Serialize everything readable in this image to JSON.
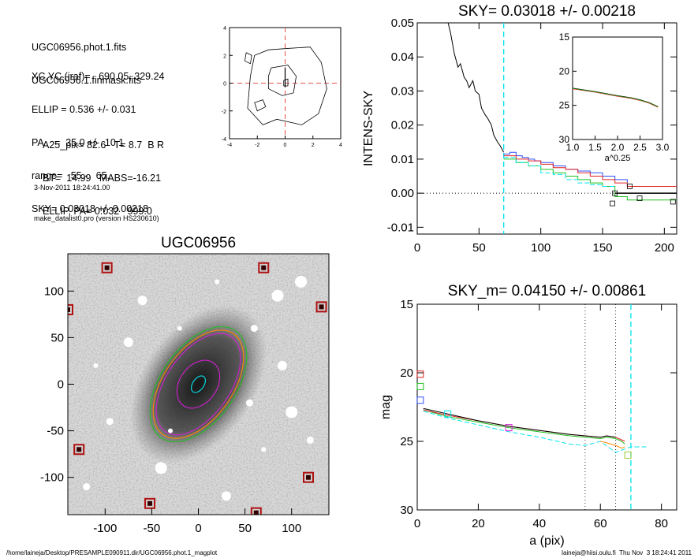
{
  "info_block": {
    "group1": [
      "UGC06956.phot.1.fits",
      "UGC06956.1.finmask.fits"
    ],
    "group2": [
      "XC,YC (iraf)=   690.05, 329.24",
      "ELLIP = 0.536 +/- 0.031",
      "PA    =  35.0 +/-  10.1",
      "range=   55.-   65.",
      "SKY= 0.03018 +/- 0.00218"
    ],
    "group3": [
      "A25_pix= 82.6   T= 8.7  B R",
      "BT=  14.99   MABS=-16.21",
      "ELLIP, PA= 0.032   999.0"
    ],
    "group4": [
      "3-Nov-2011 18:24:41.00",
      "make_datalist0.pro (version HS230610)"
    ]
  },
  "footer": {
    "left": "/home/laineja/Desktop/PRESAMPLE090911.dir/UGC06956.phot.1_magplot",
    "right": "laineja@hiisi.oulu.fi  Thu Nov  3 18:24:41 2011"
  },
  "colors": {
    "sky_line": "#00e5ee",
    "blue": "#3050ff",
    "red": "#e02020",
    "green": "#20c020",
    "magenta": "#d020d0",
    "orange": "#ff8800",
    "mask": "#b01010"
  },
  "chart_data": [
    {
      "id": "center_contour",
      "type": "contour",
      "title": "",
      "xlim": [
        -4,
        4
      ],
      "ylim": [
        -4,
        4
      ],
      "xticks": [
        "-4",
        "-2",
        "0",
        "2",
        "4"
      ],
      "yticks": [
        "4",
        "2",
        "0",
        "-2",
        "-4"
      ],
      "center": [
        0,
        0
      ]
    },
    {
      "id": "sky_profile",
      "type": "line",
      "title": "SKY= 0.03018 +/- 0.00218",
      "xlabel": "",
      "ylabel": "INTENS-SKY",
      "xlim": [
        0,
        210
      ],
      "ylim": [
        -0.012,
        0.05
      ],
      "xticks": [
        "0",
        "50",
        "100",
        "150",
        "200"
      ],
      "yticks": [
        "0.05",
        "0.04",
        "0.03",
        "0.02",
        "0.01",
        "0.00",
        "-0.01"
      ],
      "sky_radius": 70,
      "series": [
        {
          "color": "black",
          "x": [
            25,
            27,
            30,
            33,
            35,
            38,
            40,
            42,
            45,
            47,
            50,
            52,
            55,
            57,
            60,
            62,
            65,
            67,
            70
          ],
          "y": [
            0.05,
            0.047,
            0.041,
            0.037,
            0.038,
            0.034,
            0.033,
            0.031,
            0.033,
            0.03,
            0.029,
            0.025,
            0.023,
            0.022,
            0.02,
            0.017,
            0.015,
            0.014,
            0.012
          ]
        },
        {
          "color": "blue",
          "x": [
            70,
            75,
            80,
            85,
            90,
            95,
            100,
            110,
            120,
            130,
            140,
            150,
            160,
            170
          ],
          "y": [
            0.0115,
            0.012,
            0.011,
            0.0105,
            0.01,
            0.0095,
            0.009,
            0.008,
            0.007,
            0.0065,
            0.006,
            0.005,
            0.004,
            0.003
          ]
        },
        {
          "color": "red",
          "x": [
            70,
            80,
            90,
            100,
            110,
            120,
            130,
            140,
            150,
            160,
            170,
            210
          ],
          "y": [
            0.011,
            0.01,
            0.0095,
            0.0085,
            0.0075,
            0.007,
            0.006,
            0.005,
            0.004,
            0.003,
            0.002,
            0.002
          ]
        },
        {
          "color": "green",
          "x": [
            70,
            80,
            90,
            100,
            110,
            120,
            130,
            140,
            150,
            160,
            170,
            210
          ],
          "y": [
            0.01,
            0.009,
            0.008,
            0.007,
            0.006,
            0.005,
            0.004,
            0.003,
            0.002,
            -0.001,
            -0.002,
            -0.002
          ]
        },
        {
          "color": "cyan",
          "dashed": true,
          "x": [
            70,
            80,
            90,
            100,
            110,
            120,
            130,
            140,
            150,
            160
          ],
          "y": [
            0.0105,
            0.009,
            0.008,
            0.006,
            0.0055,
            0.004,
            0.003,
            0.0025,
            0.002,
            0.0015
          ]
        },
        {
          "color": "black",
          "x": [
            160,
            210
          ],
          "y": [
            0.0,
            0.0
          ]
        }
      ],
      "markers": [
        [
          172,
          0.002
        ],
        [
          160,
          0.0
        ],
        [
          158,
          -0.003
        ],
        [
          180,
          -0.0015
        ],
        [
          207,
          -0.0025
        ]
      ],
      "inset": {
        "xlabel": "a^0.25",
        "xlim": [
          1.0,
          3.0
        ],
        "ylim": [
          15,
          30
        ],
        "xticks": [
          "1.0",
          "1.5",
          "2.0",
          "2.5",
          "3.0"
        ],
        "yticks": [
          "15",
          "20",
          "25",
          "30"
        ],
        "x": [
          1.0,
          1.5,
          2.0,
          2.3,
          2.5,
          2.6,
          2.7,
          2.8,
          2.9
        ],
        "y": [
          22.5,
          23.0,
          23.6,
          23.9,
          24.2,
          24.4,
          24.6,
          24.9,
          25.2
        ]
      }
    },
    {
      "id": "galaxy_image",
      "type": "image",
      "title": "UGC06956",
      "xlim": [
        -140,
        140
      ],
      "ylim": [
        -140,
        140
      ],
      "xticks": [
        "-100",
        "-50",
        "0",
        "50",
        "100"
      ],
      "yticks": [
        "100",
        "50",
        "0",
        "-50",
        "-100"
      ],
      "mask_boxes": [
        [
          -98,
          125
        ],
        [
          70,
          125
        ],
        [
          -140,
          80
        ],
        [
          132,
          83
        ],
        [
          -128,
          -70
        ],
        [
          -52,
          -128
        ],
        [
          118,
          -100
        ],
        [
          62,
          -138
        ]
      ],
      "ellipses": [
        {
          "a": 70,
          "b": 40,
          "pa": 35,
          "color": "green"
        },
        {
          "a": 66,
          "b": 37,
          "pa": 35,
          "color": "orange"
        },
        {
          "a": 62,
          "b": 34,
          "pa": 35,
          "color": "magenta"
        },
        {
          "a": 28,
          "b": 20,
          "pa": 35,
          "color": "magenta"
        },
        {
          "a": 10,
          "b": 6,
          "pa": 35,
          "color": "cyan"
        }
      ]
    },
    {
      "id": "mag_profile",
      "type": "line",
      "title": "SKY_m=  0.04150 +/- 0.00861",
      "xlabel": "a (pix)",
      "ylabel": "mag",
      "xlim": [
        0,
        85
      ],
      "ylim": [
        15,
        30
      ],
      "y_reversed": true,
      "xticks": [
        "0",
        "20",
        "40",
        "60",
        "80"
      ],
      "yticks": [
        "15",
        "20",
        "25",
        "30"
      ],
      "vlines": [
        55,
        65,
        70
      ],
      "series": [
        {
          "color": "green",
          "x": [
            2,
            10,
            20,
            30,
            40,
            50,
            55,
            60,
            62,
            65,
            67,
            68
          ],
          "y": [
            22.7,
            23.2,
            23.6,
            24.0,
            24.3,
            24.6,
            24.7,
            24.8,
            24.7,
            24.8,
            25.0,
            25.2
          ]
        },
        {
          "color": "red",
          "x": [
            2,
            10,
            20,
            30,
            40,
            50,
            55,
            60,
            62,
            65,
            67,
            68
          ],
          "y": [
            22.7,
            23.1,
            23.5,
            23.9,
            24.2,
            24.5,
            24.6,
            24.7,
            24.6,
            24.7,
            24.9,
            25.0
          ]
        },
        {
          "color": "black",
          "x": [
            2,
            10,
            20,
            30,
            40,
            50,
            55,
            60,
            62,
            65
          ],
          "y": [
            22.6,
            23.0,
            23.5,
            23.9,
            24.2,
            24.5,
            24.6,
            24.7,
            24.6,
            24.7
          ]
        },
        {
          "color": "cyan",
          "dashed": true,
          "x": [
            2,
            10,
            20,
            30,
            40,
            50,
            55,
            60,
            65,
            70,
            72,
            75
          ],
          "y": [
            22.8,
            23.3,
            23.8,
            24.3,
            24.7,
            25.2,
            25.3,
            25.0,
            25.8,
            25.4,
            25.4,
            25.4
          ]
        },
        {
          "color": "orange",
          "x": [
            60,
            62,
            65,
            67,
            68
          ],
          "y": [
            25.0,
            25.1,
            25.3,
            25.5,
            25.4
          ]
        }
      ],
      "markers": [
        {
          "x": 1,
          "y": 20.1,
          "color": "red"
        },
        {
          "x": 1,
          "y": 21.0,
          "color": "green"
        },
        {
          "x": 1,
          "y": 22.0,
          "color": "blue"
        },
        {
          "x": 10,
          "y": 23.0,
          "color": "cyan"
        },
        {
          "x": 30,
          "y": 24.0,
          "color": "magenta"
        },
        {
          "x": 69,
          "y": 26.0,
          "color": "yellowgreen"
        }
      ]
    }
  ]
}
